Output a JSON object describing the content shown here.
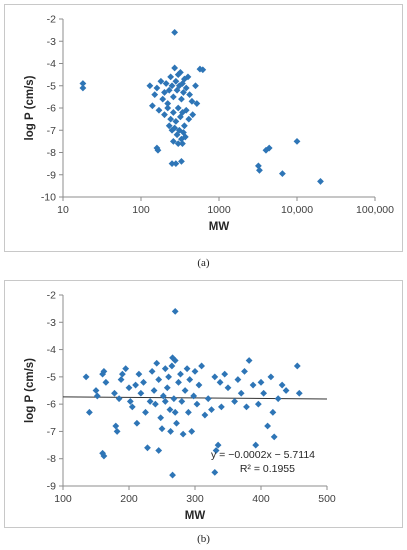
{
  "captions": [
    "(a)",
    "(b)"
  ],
  "chart_data": [
    {
      "type": "scatter",
      "xscale": "log",
      "xlabel": "MW",
      "ylabel": "log P (cm/s)",
      "xlim": [
        10,
        100000
      ],
      "ylim": [
        -10,
        -2
      ],
      "xticks": [
        10,
        100,
        1000,
        10000,
        100000
      ],
      "xtick_labels": [
        "10",
        "100",
        "1000",
        "10,000",
        "100,000"
      ],
      "yticks": [
        -10,
        -9,
        -8,
        -7,
        -6,
        -5,
        -4,
        -3,
        -2
      ],
      "ytick_labels": [
        "-10",
        "-9",
        "-8",
        "-7",
        "-6",
        "-5",
        "-4",
        "-3",
        "-2"
      ],
      "grid": false,
      "marker_color": "#2e75b6",
      "points": [
        [
          18,
          -4.9
        ],
        [
          18,
          -5.1
        ],
        [
          270,
          -2.6
        ],
        [
          570,
          -4.25
        ],
        [
          620,
          -4.28
        ],
        [
          130,
          -5.0
        ],
        [
          150,
          -5.4
        ],
        [
          160,
          -5.1
        ],
        [
          180,
          -4.8
        ],
        [
          190,
          -5.6
        ],
        [
          200,
          -5.3
        ],
        [
          210,
          -4.9
        ],
        [
          220,
          -5.8
        ],
        [
          230,
          -5.2
        ],
        [
          240,
          -4.6
        ],
        [
          250,
          -5.0
        ],
        [
          260,
          -5.5
        ],
        [
          270,
          -4.2
        ],
        [
          280,
          -4.8
        ],
        [
          290,
          -5.2
        ],
        [
          300,
          -4.5
        ],
        [
          310,
          -5.0
        ],
        [
          320,
          -4.4
        ],
        [
          330,
          -5.6
        ],
        [
          340,
          -4.9
        ],
        [
          350,
          -5.3
        ],
        [
          360,
          -4.7
        ],
        [
          380,
          -5.1
        ],
        [
          400,
          -4.6
        ],
        [
          420,
          -5.4
        ],
        [
          450,
          -5.7
        ],
        [
          500,
          -5.0
        ],
        [
          520,
          -5.8
        ],
        [
          140,
          -5.9
        ],
        [
          170,
          -6.1
        ],
        [
          200,
          -6.3
        ],
        [
          220,
          -6.0
        ],
        [
          240,
          -6.5
        ],
        [
          260,
          -6.2
        ],
        [
          280,
          -6.6
        ],
        [
          300,
          -6.0
        ],
        [
          320,
          -6.4
        ],
        [
          340,
          -6.2
        ],
        [
          360,
          -6.8
        ],
        [
          380,
          -6.1
        ],
        [
          410,
          -6.5
        ],
        [
          460,
          -6.3
        ],
        [
          230,
          -6.8
        ],
        [
          250,
          -7.0
        ],
        [
          270,
          -6.9
        ],
        [
          290,
          -7.2
        ],
        [
          310,
          -7.0
        ],
        [
          330,
          -7.4
        ],
        [
          350,
          -7.1
        ],
        [
          260,
          -7.5
        ],
        [
          300,
          -7.6
        ],
        [
          340,
          -7.6
        ],
        [
          370,
          -7.3
        ],
        [
          160,
          -7.8
        ],
        [
          165,
          -7.9
        ],
        [
          250,
          -8.5
        ],
        [
          280,
          -8.5
        ],
        [
          330,
          -8.4
        ],
        [
          3200,
          -8.6
        ],
        [
          3300,
          -8.8
        ],
        [
          4000,
          -7.9
        ],
        [
          4400,
          -7.8
        ],
        [
          6500,
          -8.95
        ],
        [
          10000,
          -7.5
        ],
        [
          20000,
          -9.3
        ]
      ]
    },
    {
      "type": "scatter",
      "xlabel": "MW",
      "ylabel": "log P (cm/s)",
      "xlim": [
        100,
        500
      ],
      "ylim": [
        -9,
        -2
      ],
      "xticks": [
        100,
        200,
        300,
        400,
        500
      ],
      "yticks": [
        -9,
        -8,
        -7,
        -6,
        -5,
        -4,
        -3,
        -2
      ],
      "grid": false,
      "marker_color": "#2e75b6",
      "trendline": {
        "slope": -0.0002,
        "intercept": -5.7114,
        "color": "#333333"
      },
      "annotation": {
        "equation": "y = −0.0002x − 5.7114",
        "r2": "R² = 0.1955"
      },
      "points": [
        [
          135,
          -5.0
        ],
        [
          140,
          -6.3
        ],
        [
          150,
          -5.5
        ],
        [
          152,
          -5.7
        ],
        [
          160,
          -4.9
        ],
        [
          162,
          -4.8
        ],
        [
          165,
          -5.2
        ],
        [
          160,
          -7.8
        ],
        [
          162,
          -7.9
        ],
        [
          178,
          -5.6
        ],
        [
          180,
          -6.8
        ],
        [
          182,
          -7.0
        ],
        [
          185,
          -5.8
        ],
        [
          188,
          -5.1
        ],
        [
          190,
          -4.9
        ],
        [
          195,
          -4.7
        ],
        [
          200,
          -5.4
        ],
        [
          202,
          -5.9
        ],
        [
          205,
          -6.1
        ],
        [
          210,
          -5.3
        ],
        [
          212,
          -6.7
        ],
        [
          215,
          -4.9
        ],
        [
          218,
          -5.6
        ],
        [
          222,
          -5.2
        ],
        [
          225,
          -6.3
        ],
        [
          228,
          -7.6
        ],
        [
          232,
          -5.9
        ],
        [
          235,
          -4.8
        ],
        [
          238,
          -5.5
        ],
        [
          240,
          -6.0
        ],
        [
          242,
          -4.5
        ],
        [
          245,
          -5.1
        ],
        [
          248,
          -6.5
        ],
        [
          250,
          -6.9
        ],
        [
          252,
          -5.7
        ],
        [
          255,
          -4.7
        ],
        [
          258,
          -5.4
        ],
        [
          260,
          -5.0
        ],
        [
          262,
          -6.2
        ],
        [
          263,
          -7.0
        ],
        [
          265,
          -4.6
        ],
        [
          266,
          -4.3
        ],
        [
          268,
          -5.8
        ],
        [
          270,
          -2.6
        ],
        [
          270,
          -4.4
        ],
        [
          272,
          -6.7
        ],
        [
          275,
          -5.2
        ],
        [
          278,
          -4.9
        ],
        [
          280,
          -5.9
        ],
        [
          282,
          -7.1
        ],
        [
          285,
          -5.5
        ],
        [
          288,
          -4.7
        ],
        [
          290,
          -6.3
        ],
        [
          292,
          -5.1
        ],
        [
          295,
          -7.0
        ],
        [
          298,
          -5.7
        ],
        [
          300,
          -4.8
        ],
        [
          303,
          -6.0
        ],
        [
          306,
          -5.3
        ],
        [
          310,
          -4.6
        ],
        [
          315,
          -6.4
        ],
        [
          320,
          -5.8
        ],
        [
          325,
          -6.2
        ],
        [
          330,
          -5.0
        ],
        [
          332,
          -7.7
        ],
        [
          335,
          -7.5
        ],
        [
          338,
          -5.2
        ],
        [
          340,
          -6.1
        ],
        [
          345,
          -4.9
        ],
        [
          350,
          -5.4
        ],
        [
          360,
          -5.9
        ],
        [
          365,
          -5.1
        ],
        [
          370,
          -5.6
        ],
        [
          375,
          -4.8
        ],
        [
          378,
          -6.1
        ],
        [
          382,
          -4.4
        ],
        [
          388,
          -5.3
        ],
        [
          392,
          -7.5
        ],
        [
          396,
          -6.0
        ],
        [
          400,
          -5.2
        ],
        [
          404,
          -5.6
        ],
        [
          410,
          -6.8
        ],
        [
          415,
          -5.0
        ],
        [
          418,
          -6.3
        ],
        [
          420,
          -7.2
        ],
        [
          426,
          -5.8
        ],
        [
          432,
          -5.3
        ],
        [
          438,
          -5.5
        ],
        [
          455,
          -4.6
        ],
        [
          458,
          -5.6
        ],
        [
          266,
          -8.6
        ],
        [
          330,
          -8.5
        ],
        [
          245,
          -7.7
        ],
        [
          270,
          -6.3
        ],
        [
          255,
          -5.9
        ]
      ]
    }
  ]
}
